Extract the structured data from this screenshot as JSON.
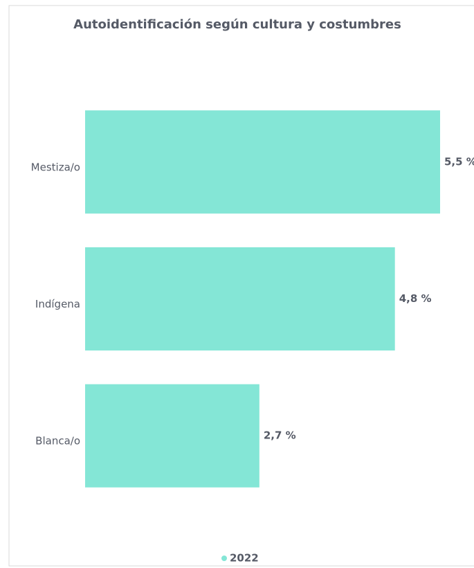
{
  "chart_data": {
    "type": "bar",
    "orientation": "horizontal",
    "title": "Autoidentificación según cultura y costumbres",
    "categories": [
      "Mestiza/o",
      "Indígena",
      "Blanca/o"
    ],
    "series": [
      {
        "name": "2022",
        "color": "#84e6d6",
        "values": [
          5.5,
          4.8,
          2.7
        ],
        "value_labels": [
          "5,5 %",
          "4,8 %",
          "2,7 %"
        ]
      }
    ],
    "xlim": [
      0,
      5.5
    ],
    "legend": "bottom"
  }
}
